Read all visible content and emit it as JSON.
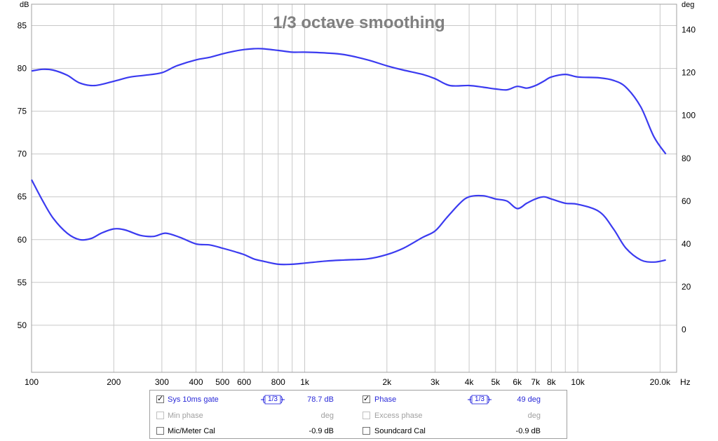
{
  "chart_data": {
    "type": "line",
    "title": "1/3 octave smoothing",
    "xlabel": "Hz",
    "ylabel": "dB",
    "y2label": "deg",
    "xscale": "log",
    "xlim": [
      100,
      23000
    ],
    "ylim": [
      44.5,
      87.5
    ],
    "y2lim": [
      -20,
      152
    ],
    "grid": true,
    "x_ticks": [
      {
        "v": 100,
        "label": "100"
      },
      {
        "v": 200,
        "label": "200"
      },
      {
        "v": 300,
        "label": "300"
      },
      {
        "v": 400,
        "label": "400"
      },
      {
        "v": 500,
        "label": "500"
      },
      {
        "v": 600,
        "label": "600"
      },
      {
        "v": 800,
        "label": "800"
      },
      {
        "v": 1000,
        "label": "1k"
      },
      {
        "v": 2000,
        "label": "2k"
      },
      {
        "v": 3000,
        "label": "3k"
      },
      {
        "v": 4000,
        "label": "4k"
      },
      {
        "v": 5000,
        "label": "5k"
      },
      {
        "v": 6000,
        "label": "6k"
      },
      {
        "v": 7000,
        "label": "7k"
      },
      {
        "v": 8000,
        "label": "8k"
      },
      {
        "v": 10000,
        "label": "10k"
      },
      {
        "v": 20000,
        "label": "20.0k"
      }
    ],
    "x_minor": [
      700,
      900,
      9000
    ],
    "y_ticks": [
      50,
      55,
      60,
      65,
      70,
      75,
      80,
      85
    ],
    "y2_ticks": [
      0,
      20,
      40,
      60,
      80,
      100,
      120,
      140
    ],
    "series": [
      {
        "name": "Sys 10ms gate",
        "axis": "left",
        "color": "#3b3bf0",
        "x": [
          100,
          110,
          120,
          135,
          150,
          170,
          200,
          230,
          260,
          300,
          340,
          400,
          450,
          500,
          550,
          600,
          650,
          700,
          800,
          900,
          1000,
          1200,
          1400,
          1700,
          2000,
          2300,
          2700,
          3000,
          3400,
          4000,
          4500,
          5000,
          5500,
          6000,
          6500,
          7000,
          7500,
          8000,
          9000,
          10000,
          12000,
          13500,
          15000,
          17000,
          19000,
          21000
        ],
        "y": [
          79.7,
          79.9,
          79.8,
          79.2,
          78.3,
          78.0,
          78.5,
          79.0,
          79.2,
          79.5,
          80.3,
          81.0,
          81.3,
          81.7,
          82.0,
          82.2,
          82.3,
          82.3,
          82.1,
          81.9,
          81.9,
          81.8,
          81.6,
          81.0,
          80.3,
          79.8,
          79.3,
          78.8,
          78.0,
          78.0,
          77.8,
          77.6,
          77.5,
          77.9,
          77.7,
          78.0,
          78.5,
          79.0,
          79.3,
          79.0,
          78.9,
          78.6,
          77.8,
          75.5,
          72.0,
          70.0
        ]
      },
      {
        "name": "Phase",
        "axis": "right",
        "color": "#3b3bf0",
        "x": [
          100,
          110,
          120,
          135,
          150,
          165,
          180,
          200,
          220,
          250,
          280,
          310,
          350,
          400,
          450,
          500,
          550,
          600,
          650,
          700,
          800,
          900,
          1000,
          1200,
          1400,
          1700,
          2000,
          2300,
          2700,
          3000,
          3300,
          3700,
          4000,
          4500,
          5000,
          5500,
          6000,
          6500,
          7000,
          7500,
          8000,
          9000,
          10000,
          12000,
          13500,
          15000,
          17000,
          19000,
          21000
        ],
        "y": [
          70.0,
          60.0,
          52.0,
          45.0,
          42.0,
          42.5,
          45.0,
          47.0,
          46.5,
          44.0,
          43.5,
          45.0,
          43.0,
          40.0,
          39.5,
          38.0,
          36.5,
          35.0,
          33.0,
          32.0,
          30.5,
          30.5,
          31.0,
          32.0,
          32.5,
          33.0,
          35.0,
          38.0,
          43.0,
          46.0,
          52.0,
          59.0,
          62.0,
          62.5,
          61.0,
          60.0,
          56.5,
          59.0,
          61.0,
          62.0,
          61.0,
          59.0,
          58.5,
          55.0,
          47.0,
          38.0,
          32.5,
          31.5,
          32.5
        ]
      }
    ]
  },
  "legend": {
    "row1": {
      "left_label": "Sys 10ms gate",
      "left_smoothing": "1/3",
      "left_value": "78.7 dB",
      "right_label": "Phase",
      "right_smoothing": "1/3",
      "right_value": "49 deg"
    },
    "row2": {
      "left_label": "Min phase",
      "left_value": "deg",
      "right_label": "Excess phase",
      "right_value": "deg"
    },
    "row3": {
      "left_label": "Mic/Meter Cal",
      "left_value": "-0.9 dB",
      "right_label": "Soundcard Cal",
      "right_value": "-0.9 dB"
    }
  },
  "colors": {
    "trace": "#3b3bf0",
    "grid": "#c8c8c8",
    "title": "#808080"
  }
}
